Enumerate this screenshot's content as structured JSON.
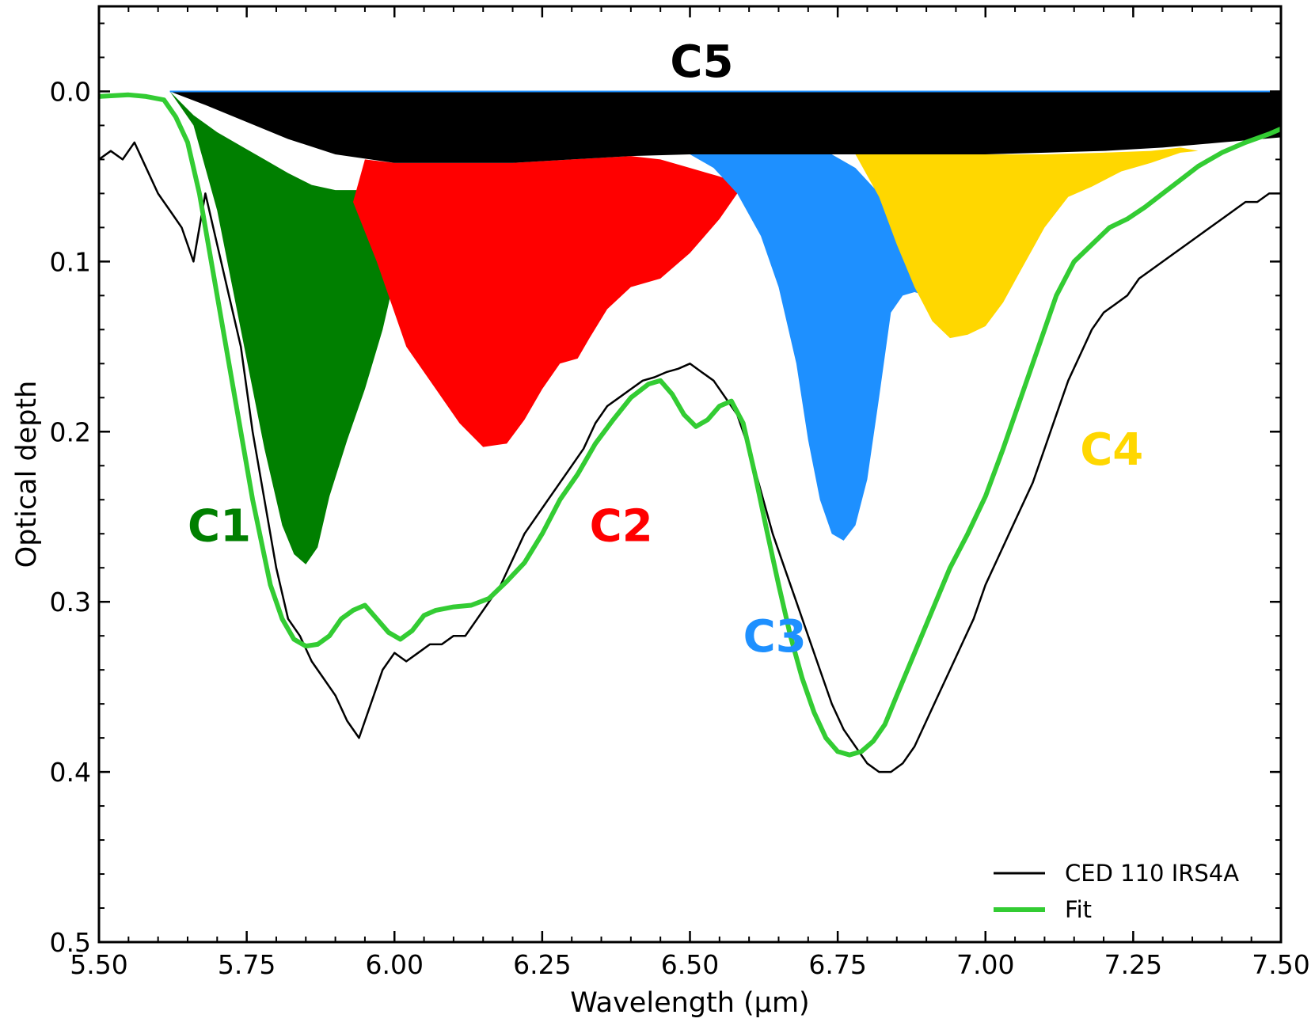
{
  "chart_data": {
    "type": "area",
    "xlabel": "Wavelength (μm)",
    "ylabel": "Optical depth",
    "xlim": [
      5.5,
      7.5
    ],
    "ylim": [
      0.5,
      -0.05
    ],
    "y_inverted": true,
    "x_ticks": [
      "5.50",
      "5.75",
      "6.00",
      "6.25",
      "6.50",
      "6.75",
      "7.00",
      "7.25",
      "7.50"
    ],
    "y_ticks": [
      "0.0",
      "0.1",
      "0.2",
      "0.3",
      "0.4",
      "0.5"
    ],
    "grid": false,
    "legend_position": "bottom-right",
    "legend": [
      {
        "label": "CED 110 IRS4A",
        "color": "#000000"
      },
      {
        "label": "Fit",
        "color": "#33cc33"
      }
    ],
    "components": [
      {
        "name": "C5",
        "color": "#000000",
        "label_pos": [
          6.52,
          -0.018
        ],
        "x": [
          5.62,
          5.68,
          5.75,
          5.82,
          5.9,
          6.0,
          6.1,
          6.2,
          6.3,
          6.4,
          6.5,
          6.6,
          6.7,
          6.8,
          6.9,
          7.0,
          7.1,
          7.2,
          7.3,
          7.4,
          7.5
        ],
        "y": [
          0.0,
          0.008,
          0.018,
          0.028,
          0.037,
          0.042,
          0.042,
          0.042,
          0.04,
          0.038,
          0.037,
          0.037,
          0.037,
          0.037,
          0.037,
          0.037,
          0.036,
          0.035,
          0.033,
          0.03,
          0.027
        ]
      },
      {
        "name": "C1",
        "color": "#007f00",
        "label_pos": [
          5.65,
          0.255
        ],
        "x": [
          5.62,
          5.66,
          5.7,
          5.74,
          5.78,
          5.81,
          5.83,
          5.85,
          5.87,
          5.89,
          5.92,
          5.95,
          5.98,
          6.0,
          6.02,
          6.04,
          5.98,
          5.94,
          5.9,
          5.86,
          5.82,
          5.78,
          5.74,
          5.7,
          5.66,
          5.62
        ],
        "y": [
          0.0,
          0.02,
          0.07,
          0.14,
          0.21,
          0.255,
          0.272,
          0.278,
          0.268,
          0.238,
          0.205,
          0.175,
          0.14,
          0.11,
          0.08,
          0.05,
          0.055,
          0.058,
          0.058,
          0.055,
          0.048,
          0.04,
          0.032,
          0.024,
          0.014,
          0.0
        ]
      },
      {
        "name": "C2",
        "color": "#ff0000",
        "label_pos": [
          6.33,
          0.255
        ],
        "x": [
          5.93,
          5.97,
          6.02,
          6.07,
          6.11,
          6.15,
          6.19,
          6.22,
          6.25,
          6.28,
          6.31,
          6.33,
          6.36,
          6.4,
          6.45,
          6.5,
          6.55,
          6.59,
          6.55,
          6.5,
          6.45,
          6.4,
          6.3,
          6.2,
          6.1,
          6.0,
          5.95,
          5.93
        ],
        "y": [
          0.065,
          0.1,
          0.15,
          0.175,
          0.195,
          0.209,
          0.207,
          0.193,
          0.175,
          0.16,
          0.157,
          0.145,
          0.128,
          0.115,
          0.11,
          0.095,
          0.075,
          0.055,
          0.05,
          0.045,
          0.04,
          0.038,
          0.04,
          0.042,
          0.042,
          0.042,
          0.04,
          0.065
        ]
      },
      {
        "name": "C3",
        "color": "#1e90ff",
        "label_pos": [
          6.59,
          0.32
        ],
        "x": [
          6.5,
          6.54,
          6.58,
          6.62,
          6.65,
          6.68,
          6.7,
          6.72,
          6.74,
          6.76,
          6.78,
          6.8,
          6.82,
          6.84,
          6.86,
          6.88,
          6.9,
          6.86,
          6.82,
          6.78,
          6.74,
          6.7,
          6.65,
          6.6,
          6.55,
          6.5
        ],
        "y": [
          0.037,
          0.045,
          0.06,
          0.085,
          0.115,
          0.16,
          0.205,
          0.24,
          0.26,
          0.264,
          0.255,
          0.228,
          0.18,
          0.13,
          0.12,
          0.118,
          0.12,
          0.09,
          0.06,
          0.045,
          0.037,
          0.037,
          0.037,
          0.037,
          0.037,
          0.037
        ]
      },
      {
        "name": "C4",
        "color": "#ffd700",
        "label_pos": [
          7.16,
          0.21
        ],
        "x": [
          6.78,
          6.82,
          6.85,
          6.88,
          6.91,
          6.94,
          6.97,
          7.0,
          7.03,
          7.06,
          7.1,
          7.14,
          7.18,
          7.23,
          7.28,
          7.33,
          7.36,
          7.33,
          7.28,
          7.2,
          7.1,
          7.0,
          6.9,
          6.8,
          6.78
        ],
        "y": [
          0.037,
          0.062,
          0.09,
          0.115,
          0.135,
          0.145,
          0.143,
          0.138,
          0.124,
          0.105,
          0.08,
          0.062,
          0.056,
          0.047,
          0.042,
          0.036,
          0.035,
          0.033,
          0.035,
          0.036,
          0.037,
          0.037,
          0.037,
          0.037,
          0.037
        ]
      }
    ],
    "series": [
      {
        "name": "CED 110 IRS4A",
        "color": "#000000",
        "x": [
          5.5,
          5.52,
          5.54,
          5.56,
          5.58,
          5.6,
          5.62,
          5.64,
          5.66,
          5.68,
          5.7,
          5.72,
          5.74,
          5.76,
          5.78,
          5.8,
          5.82,
          5.84,
          5.86,
          5.88,
          5.9,
          5.92,
          5.94,
          5.96,
          5.98,
          6.0,
          6.02,
          6.04,
          6.06,
          6.08,
          6.1,
          6.12,
          6.14,
          6.16,
          6.18,
          6.2,
          6.22,
          6.24,
          6.26,
          6.28,
          6.3,
          6.32,
          6.34,
          6.36,
          6.38,
          6.4,
          6.42,
          6.44,
          6.46,
          6.48,
          6.5,
          6.52,
          6.54,
          6.56,
          6.58,
          6.6,
          6.62,
          6.64,
          6.66,
          6.68,
          6.7,
          6.72,
          6.74,
          6.76,
          6.78,
          6.8,
          6.82,
          6.84,
          6.86,
          6.88,
          6.9,
          6.92,
          6.94,
          6.96,
          6.98,
          7.0,
          7.02,
          7.04,
          7.06,
          7.08,
          7.1,
          7.12,
          7.14,
          7.16,
          7.18,
          7.2,
          7.22,
          7.24,
          7.26,
          7.28,
          7.3,
          7.32,
          7.34,
          7.36,
          7.38,
          7.4,
          7.42,
          7.44,
          7.46,
          7.48,
          7.5
        ],
        "y": [
          0.04,
          0.035,
          0.04,
          0.03,
          0.045,
          0.06,
          0.07,
          0.08,
          0.1,
          0.06,
          0.09,
          0.12,
          0.15,
          0.2,
          0.24,
          0.28,
          0.31,
          0.32,
          0.335,
          0.345,
          0.355,
          0.37,
          0.38,
          0.36,
          0.34,
          0.33,
          0.335,
          0.33,
          0.325,
          0.325,
          0.32,
          0.32,
          0.31,
          0.3,
          0.29,
          0.275,
          0.26,
          0.25,
          0.24,
          0.23,
          0.22,
          0.21,
          0.195,
          0.185,
          0.18,
          0.175,
          0.17,
          0.168,
          0.165,
          0.163,
          0.16,
          0.165,
          0.17,
          0.18,
          0.19,
          0.21,
          0.235,
          0.26,
          0.28,
          0.3,
          0.32,
          0.34,
          0.36,
          0.375,
          0.385,
          0.395,
          0.4,
          0.4,
          0.395,
          0.385,
          0.37,
          0.355,
          0.34,
          0.325,
          0.31,
          0.29,
          0.275,
          0.26,
          0.245,
          0.23,
          0.21,
          0.19,
          0.17,
          0.155,
          0.14,
          0.13,
          0.125,
          0.12,
          0.11,
          0.105,
          0.1,
          0.095,
          0.09,
          0.085,
          0.08,
          0.075,
          0.07,
          0.065,
          0.065,
          0.06,
          0.06
        ]
      },
      {
        "name": "Fit",
        "color": "#33cc33",
        "x": [
          5.5,
          5.55,
          5.58,
          5.61,
          5.63,
          5.65,
          5.67,
          5.7,
          5.73,
          5.76,
          5.79,
          5.81,
          5.83,
          5.85,
          5.87,
          5.89,
          5.91,
          5.93,
          5.95,
          5.97,
          5.99,
          6.01,
          6.03,
          6.05,
          6.07,
          6.1,
          6.13,
          6.16,
          6.19,
          6.22,
          6.25,
          6.28,
          6.31,
          6.34,
          6.37,
          6.4,
          6.43,
          6.45,
          6.47,
          6.49,
          6.51,
          6.53,
          6.55,
          6.57,
          6.59,
          6.61,
          6.63,
          6.65,
          6.67,
          6.69,
          6.71,
          6.73,
          6.75,
          6.77,
          6.79,
          6.81,
          6.83,
          6.85,
          6.88,
          6.91,
          6.94,
          6.97,
          7.0,
          7.03,
          7.06,
          7.09,
          7.12,
          7.15,
          7.18,
          7.21,
          7.24,
          7.27,
          7.3,
          7.33,
          7.36,
          7.4,
          7.44,
          7.48,
          7.5
        ],
        "y": [
          0.003,
          0.002,
          0.003,
          0.005,
          0.015,
          0.03,
          0.06,
          0.12,
          0.18,
          0.24,
          0.29,
          0.31,
          0.322,
          0.326,
          0.325,
          0.32,
          0.31,
          0.305,
          0.302,
          0.31,
          0.318,
          0.322,
          0.317,
          0.308,
          0.305,
          0.303,
          0.302,
          0.298,
          0.288,
          0.277,
          0.26,
          0.24,
          0.225,
          0.207,
          0.193,
          0.18,
          0.172,
          0.17,
          0.178,
          0.19,
          0.197,
          0.193,
          0.185,
          0.182,
          0.195,
          0.225,
          0.258,
          0.29,
          0.32,
          0.345,
          0.365,
          0.38,
          0.388,
          0.39,
          0.388,
          0.382,
          0.372,
          0.355,
          0.33,
          0.305,
          0.28,
          0.26,
          0.238,
          0.21,
          0.18,
          0.15,
          0.12,
          0.1,
          0.09,
          0.08,
          0.075,
          0.068,
          0.06,
          0.052,
          0.044,
          0.036,
          0.03,
          0.025,
          0.022
        ]
      }
    ]
  }
}
